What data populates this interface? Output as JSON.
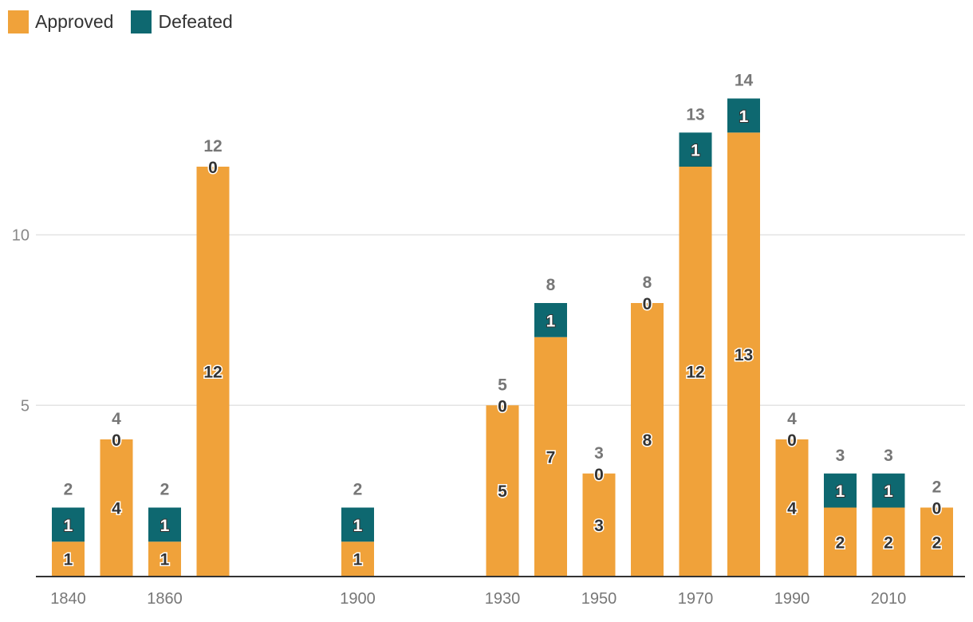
{
  "chart_data": {
    "type": "bar",
    "stacked": true,
    "categories": [
      "1840",
      "1850",
      "1860",
      "1870",
      "1880",
      "1890",
      "1900",
      "1910",
      "1920",
      "1930",
      "1940",
      "1950",
      "1960",
      "1970",
      "1980",
      "1990",
      "2000",
      "2010",
      "2020"
    ],
    "series": [
      {
        "name": "Approved",
        "color": "#f0a23a",
        "values": [
          1,
          4,
          1,
          12,
          null,
          null,
          1,
          null,
          null,
          5,
          7,
          3,
          8,
          12,
          13,
          4,
          2,
          2,
          2
        ]
      },
      {
        "name": "Defeated",
        "color": "#0e6870",
        "values": [
          1,
          0,
          1,
          0,
          null,
          null,
          1,
          null,
          null,
          0,
          1,
          0,
          0,
          1,
          1,
          0,
          1,
          1,
          0
        ]
      }
    ],
    "totals": [
      2,
      4,
      2,
      12,
      null,
      null,
      2,
      null,
      null,
      5,
      8,
      3,
      8,
      13,
      14,
      4,
      3,
      3,
      2
    ],
    "x_tick_labels": [
      "1840",
      "",
      "1860",
      "",
      "",
      "",
      "1900",
      "",
      "",
      "1930",
      "",
      "1950",
      "",
      "1970",
      "",
      "1990",
      "",
      "2010",
      ""
    ],
    "y_ticks": [
      5,
      10
    ],
    "ylim": [
      0,
      15
    ],
    "legend_position": "top-left",
    "grid": true
  }
}
